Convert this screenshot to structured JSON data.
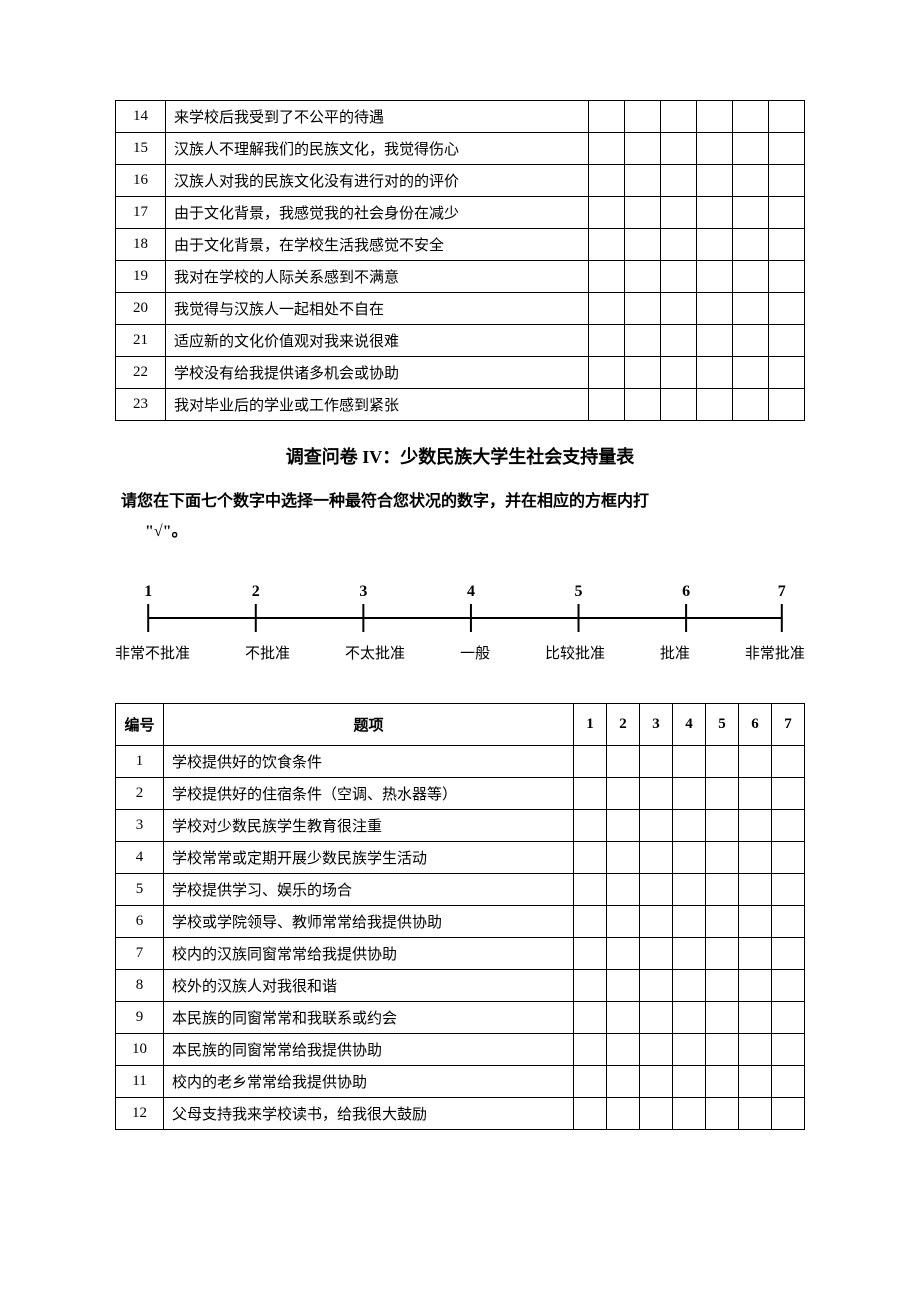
{
  "table1": {
    "num_rating_cols": 6,
    "rows": [
      {
        "num": "14",
        "item": "来学校后我受到了不公平的待遇"
      },
      {
        "num": "15",
        "item": "汉族人不理解我们的民族文化，我觉得伤心"
      },
      {
        "num": "16",
        "item": "汉族人对我的民族文化没有进行对的的评价"
      },
      {
        "num": "17",
        "item": "由于文化背景，我感觉我的社会身份在减少"
      },
      {
        "num": "18",
        "item": "由于文化背景，在学校生活我感觉不安全"
      },
      {
        "num": "19",
        "item": "我对在学校的人际关系感到不满意"
      },
      {
        "num": "20",
        "item": "我觉得与汉族人一起相处不自在"
      },
      {
        "num": "21",
        "item": "适应新的文化价值观对我来说很难"
      },
      {
        "num": "22",
        "item": "学校没有给我提供诸多机会或协助"
      },
      {
        "num": "23",
        "item": "我对毕业后的学业或工作感到紧张"
      }
    ]
  },
  "section_title": "调查问卷 IV：少数民族大学生社会支持量表",
  "instruction_line1": "请您在下面七个数字中选择一种最符合您状况的数字，并在相应的方框内打",
  "instruction_line2": "\"√\"。",
  "scale": {
    "numbers": [
      "1",
      "2",
      "3",
      "4",
      "5",
      "6",
      "7"
    ],
    "labels": [
      "非常不批准",
      "不批准",
      "不太批准",
      "一般",
      "比较批准",
      "批准",
      "非常批准"
    ],
    "tick_positions_pct": [
      2,
      18.3,
      34.6,
      50.9,
      67.2,
      83.5,
      98
    ],
    "line_color": "#000000",
    "line_width": 2
  },
  "table2": {
    "header": {
      "num": "编号",
      "item": "题项",
      "ratings": [
        "1",
        "2",
        "3",
        "4",
        "5",
        "6",
        "7"
      ]
    },
    "rows": [
      {
        "num": "1",
        "item": "学校提供好的饮食条件"
      },
      {
        "num": "2",
        "item": "学校提供好的住宿条件（空调、热水器等）"
      },
      {
        "num": "3",
        "item": "学校对少数民族学生教育很注重"
      },
      {
        "num": "4",
        "item": "学校常常或定期开展少数民族学生活动"
      },
      {
        "num": "5",
        "item": "学校提供学习、娱乐的场合"
      },
      {
        "num": "6",
        "item": "学校或学院领导、教师常常给我提供协助"
      },
      {
        "num": "7",
        "item": "校内的汉族同窗常常给我提供协助"
      },
      {
        "num": "8",
        "item": "校外的汉族人对我很和谐"
      },
      {
        "num": "9",
        "item": "本民族的同窗常常和我联系或约会"
      },
      {
        "num": "10",
        "item": "本民族的同窗常常给我提供协助"
      },
      {
        "num": "11",
        "item": "校内的老乡常常给我提供协助"
      },
      {
        "num": "12",
        "item": "父母支持我来学校读书，给我很大鼓励"
      }
    ]
  }
}
